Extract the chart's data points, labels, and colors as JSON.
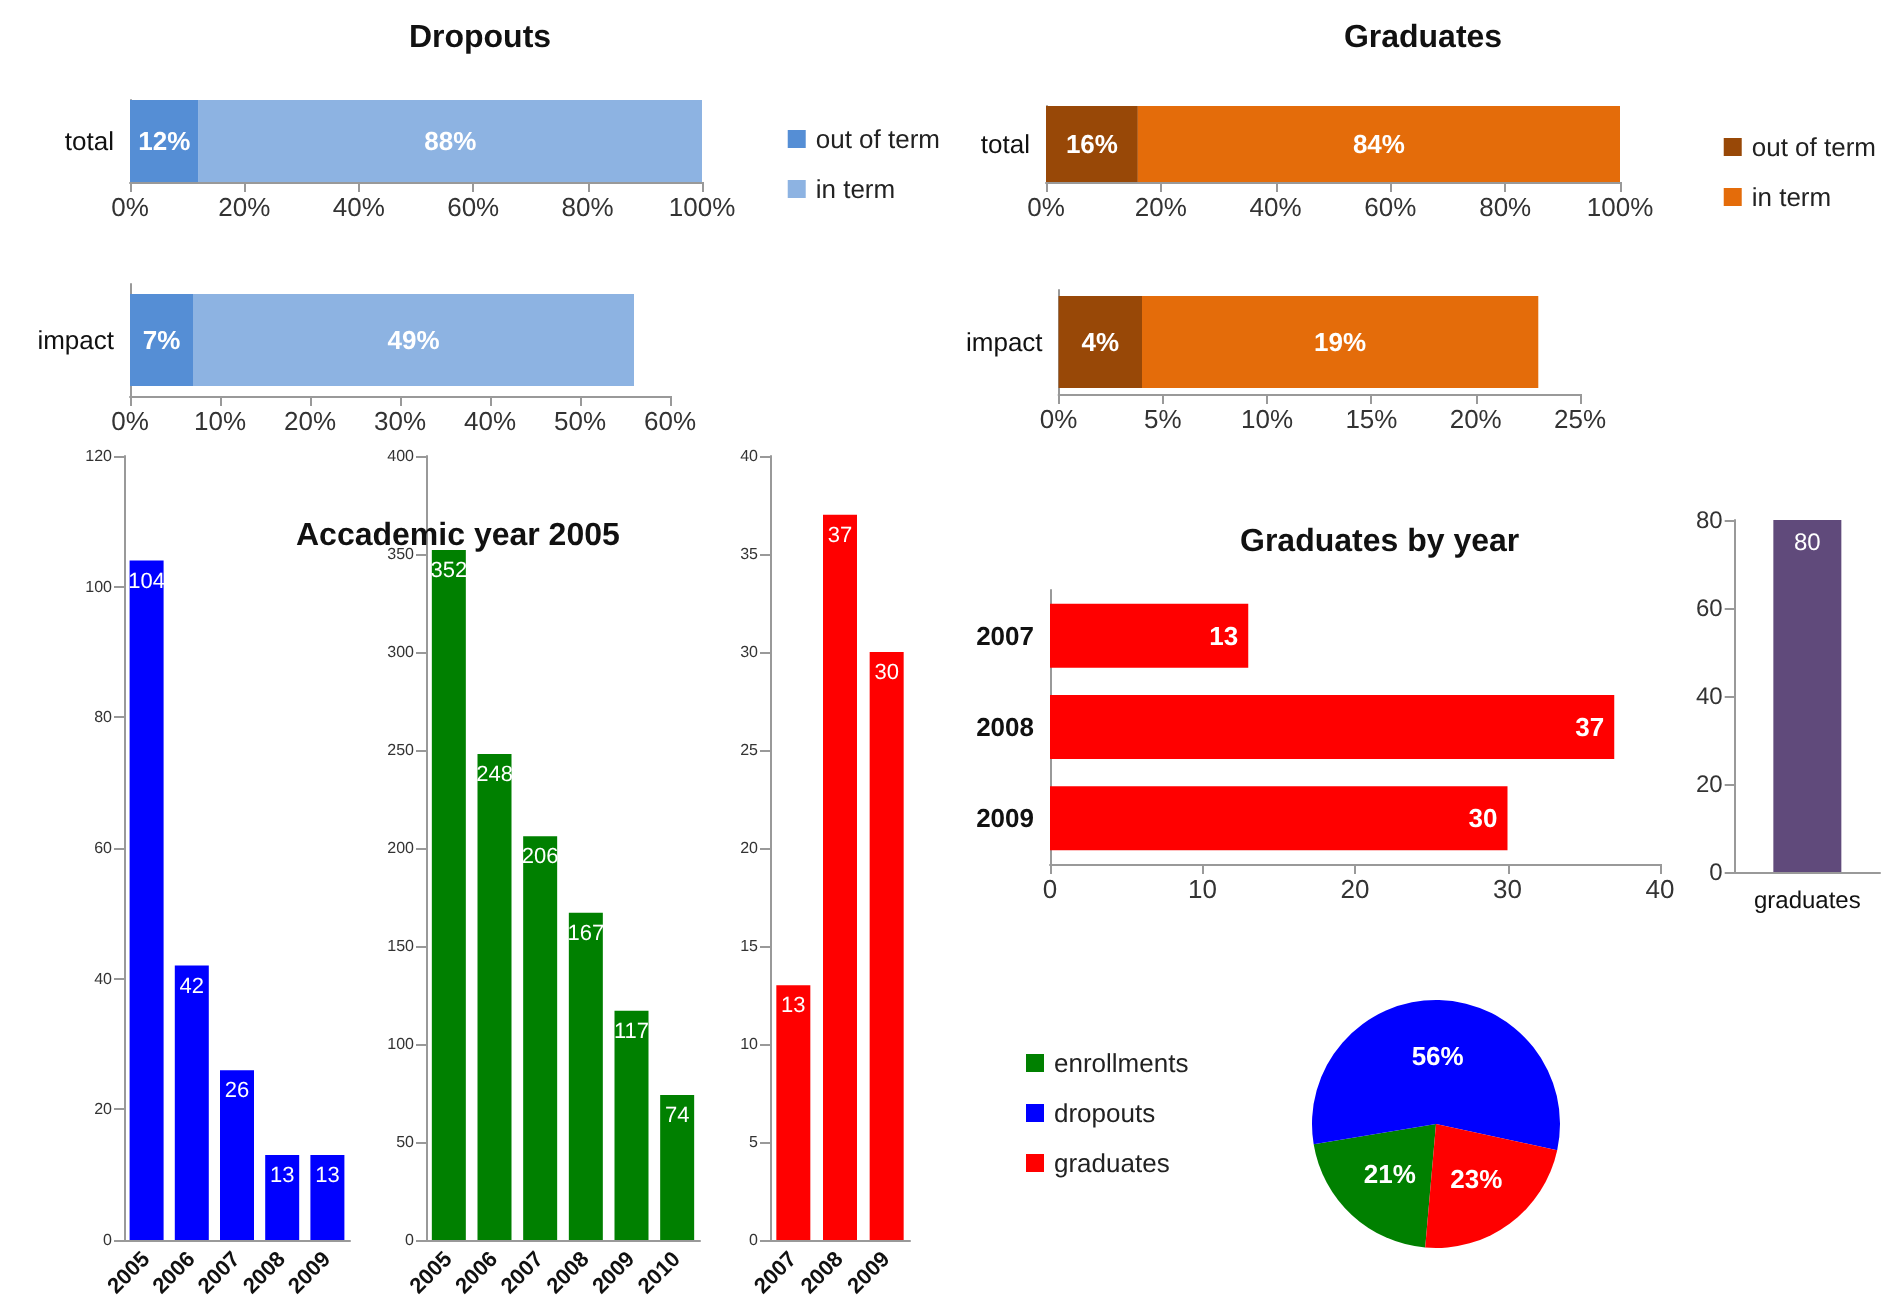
{
  "chart_data": [
    {
      "type": "bar",
      "title": "Dropouts",
      "orientation": "horizontal",
      "stacked": true,
      "legend": "right",
      "categories": [
        "total"
      ],
      "xlim": [
        0,
        100
      ],
      "xticks": [
        {
          "value": 0,
          "label": "0%"
        },
        {
          "value": 20,
          "label": "20%"
        },
        {
          "value": 40,
          "label": "40%"
        },
        {
          "value": 60,
          "label": "60%"
        },
        {
          "value": 80,
          "label": "80%"
        },
        {
          "value": 100,
          "label": "100%"
        }
      ],
      "series": [
        {
          "name": "out of term",
          "color": "#558ed5",
          "values": [
            12
          ],
          "value_labels": [
            "12%"
          ]
        },
        {
          "name": "in term",
          "color": "#8db3e2",
          "values": [
            88
          ],
          "value_labels": [
            "88%"
          ]
        }
      ]
    },
    {
      "type": "bar",
      "orientation": "horizontal",
      "stacked": true,
      "categories": [
        "impact"
      ],
      "xlim": [
        0,
        60
      ],
      "xticks": [
        {
          "value": 0,
          "label": "0%"
        },
        {
          "value": 10,
          "label": "10%"
        },
        {
          "value": 20,
          "label": "20%"
        },
        {
          "value": 30,
          "label": "30%"
        },
        {
          "value": 40,
          "label": "40%"
        },
        {
          "value": 50,
          "label": "50%"
        },
        {
          "value": 60,
          "label": "60%"
        }
      ],
      "series": [
        {
          "color": "#558ed5",
          "values": [
            7
          ],
          "value_labels": [
            "7%"
          ]
        },
        {
          "color": "#8db3e2",
          "values": [
            49
          ],
          "value_labels": [
            "49%"
          ]
        }
      ]
    },
    {
      "type": "bar",
      "title": "Graduates",
      "orientation": "horizontal",
      "stacked": true,
      "legend": "right",
      "categories": [
        "total"
      ],
      "xlim": [
        0,
        100
      ],
      "xticks": [
        {
          "value": 0,
          "label": "0%"
        },
        {
          "value": 20,
          "label": "20%"
        },
        {
          "value": 40,
          "label": "40%"
        },
        {
          "value": 60,
          "label": "60%"
        },
        {
          "value": 80,
          "label": "80%"
        },
        {
          "value": 100,
          "label": "100%"
        }
      ],
      "series": [
        {
          "name": "out of term",
          "color": "#984807",
          "values": [
            16
          ],
          "value_labels": [
            "16%"
          ]
        },
        {
          "name": "in term",
          "color": "#e46c0a",
          "values": [
            84
          ],
          "value_labels": [
            "84%"
          ]
        }
      ]
    },
    {
      "type": "bar",
      "orientation": "horizontal",
      "stacked": true,
      "categories": [
        "impact"
      ],
      "xlim": [
        0,
        25
      ],
      "xticks": [
        {
          "value": 0,
          "label": "0%"
        },
        {
          "value": 5,
          "label": "5%"
        },
        {
          "value": 10,
          "label": "10%"
        },
        {
          "value": 15,
          "label": "15%"
        },
        {
          "value": 20,
          "label": "20%"
        },
        {
          "value": 25,
          "label": "25%"
        }
      ],
      "series": [
        {
          "color": "#984807",
          "values": [
            4
          ],
          "value_labels": [
            "4%"
          ]
        },
        {
          "color": "#e46c0a",
          "values": [
            19
          ],
          "value_labels": [
            "19%"
          ]
        }
      ]
    },
    {
      "type": "bar",
      "categories": [
        "2005",
        "2006",
        "2007",
        "2008",
        "2009"
      ],
      "values": [
        104,
        42,
        26,
        13,
        13
      ],
      "color": "#0000ff",
      "data_labels": true,
      "ylim": [
        0,
        120
      ],
      "yticks": [
        0,
        20,
        40,
        60,
        80,
        100,
        120
      ]
    },
    {
      "type": "bar",
      "title": "Accademic year 2005",
      "categories": [
        "2005",
        "2006",
        "2007",
        "2008",
        "2009",
        "2010"
      ],
      "values": [
        352,
        248,
        206,
        167,
        117,
        74
      ],
      "color": "#008000",
      "data_labels": true,
      "ylim": [
        0,
        400
      ],
      "yticks": [
        0,
        50,
        100,
        150,
        200,
        250,
        300,
        350,
        400
      ]
    },
    {
      "type": "bar",
      "categories": [
        "2007",
        "2008",
        "2009"
      ],
      "values": [
        13,
        37,
        30
      ],
      "color": "#ff0000",
      "data_labels": true,
      "ylim": [
        0,
        40
      ],
      "yticks": [
        0,
        5,
        10,
        15,
        20,
        25,
        30,
        35,
        40
      ]
    },
    {
      "type": "bar",
      "title": "Graduates by year",
      "orientation": "horizontal",
      "categories": [
        "2007",
        "2008",
        "2009"
      ],
      "values": [
        13,
        37,
        30
      ],
      "color": "#ff0000",
      "data_labels": true,
      "xlim": [
        0,
        40
      ],
      "xticks": [
        0,
        10,
        20,
        30,
        40
      ]
    },
    {
      "type": "bar",
      "categories": [
        "graduates"
      ],
      "values": [
        80
      ],
      "color": "#604a7b",
      "data_labels": true,
      "ylim": [
        0,
        80
      ],
      "yticks": [
        0,
        20,
        40,
        60,
        80
      ]
    },
    {
      "type": "pie",
      "legend": "left",
      "categories": [
        "enrollments",
        "dropouts",
        "graduates"
      ],
      "values": [
        21,
        56,
        23
      ],
      "colors": [
        "#008000",
        "#0000ff",
        "#ff0000"
      ],
      "value_labels": [
        "21%",
        "56%",
        "23%"
      ]
    }
  ]
}
